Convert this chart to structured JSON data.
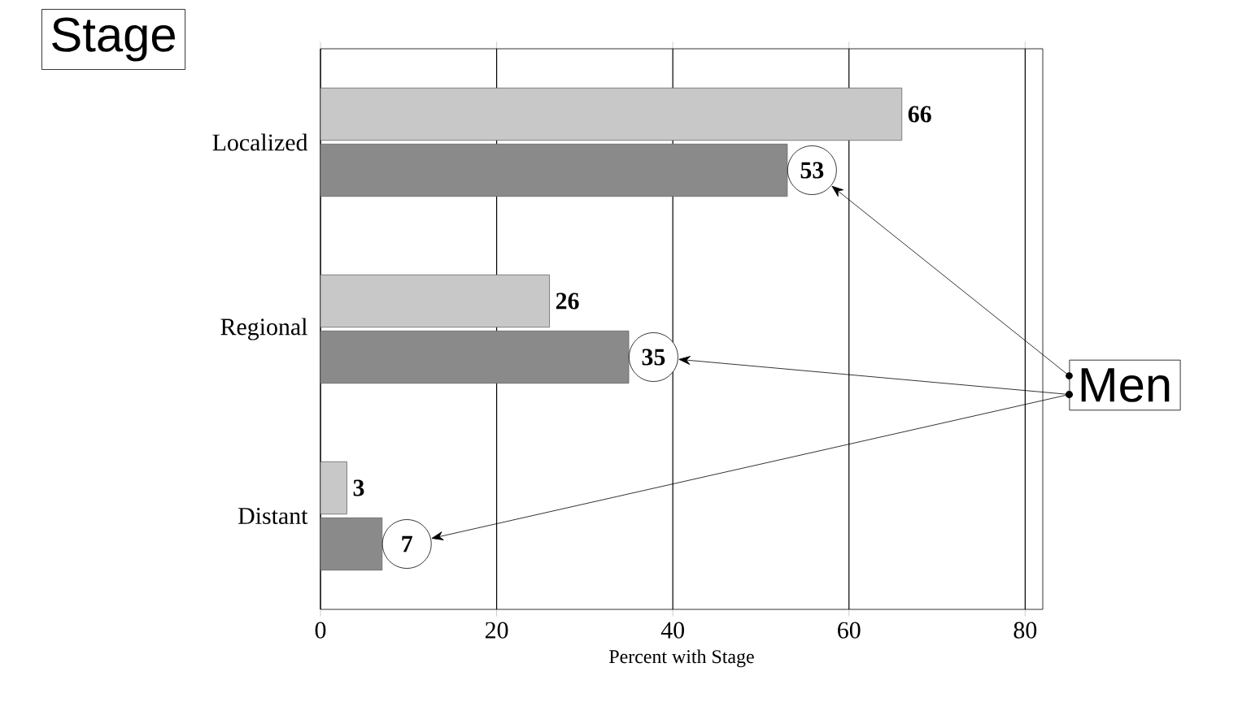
{
  "chart_data": {
    "type": "bar",
    "orientation": "horizontal",
    "categories": [
      "Localized",
      "Regional",
      "Distant"
    ],
    "series": [
      {
        "color": "#c8c8c8",
        "values": [
          66,
          26,
          3
        ]
      },
      {
        "color": "#8a8a8a",
        "values": [
          53,
          35,
          7
        ]
      }
    ],
    "xlabel": "Percent with Stage",
    "xlim": [
      0,
      82
    ],
    "xticks": [
      0,
      20,
      40,
      60,
      80
    ],
    "grid": "x",
    "data_labels": true,
    "annotations": [
      "Stage",
      "Men"
    ]
  }
}
